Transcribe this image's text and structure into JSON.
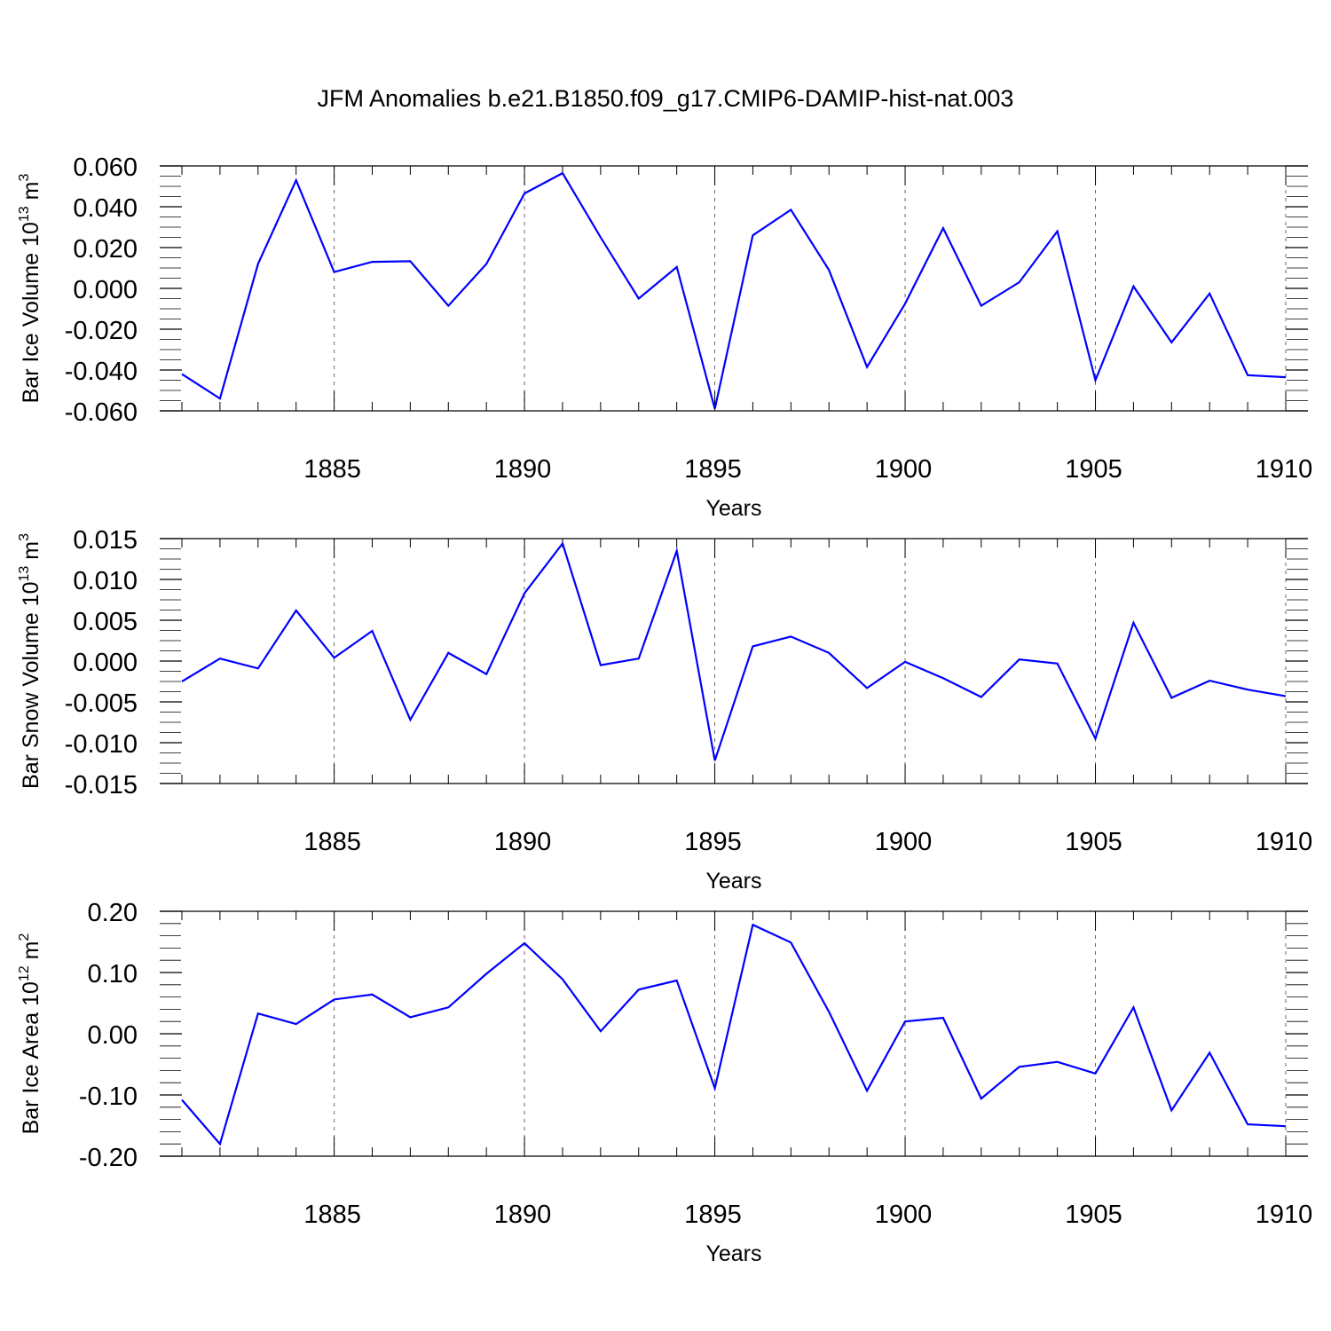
{
  "title": "JFM Anomalies b.e21.B1850.f09_g17.CMIP6-DAMIP-hist-nat.003",
  "colors": {
    "line": "#0000ff",
    "axis": "#000000",
    "grid": "#666666"
  },
  "chart_data": [
    {
      "type": "line",
      "ylabel": {
        "main": "Bar Ice Volume 10",
        "exp": "13",
        "unit": "m",
        "unit_exp": "3"
      },
      "xlabel": "Years",
      "xlim": [
        1881,
        1910
      ],
      "ylim": [
        -0.06,
        0.06
      ],
      "yticks": [
        -0.06,
        -0.04,
        -0.02,
        0.0,
        0.02,
        0.04,
        0.06
      ],
      "ytick_labels": [
        "-0.060",
        "-0.040",
        "-0.020",
        "0.000",
        "0.020",
        "0.040",
        "0.060"
      ],
      "xticks": [
        1885,
        1890,
        1895,
        1900,
        1905,
        1910
      ],
      "xtick_labels": [
        "1885",
        "1890",
        "1895",
        "1900",
        "1905",
        "1910"
      ],
      "grid": "dashed vertical at major x ticks",
      "x": [
        1881,
        1882,
        1883,
        1884,
        1885,
        1886,
        1887,
        1888,
        1889,
        1890,
        1891,
        1892,
        1893,
        1894,
        1895,
        1896,
        1897,
        1898,
        1899,
        1900,
        1901,
        1902,
        1903,
        1904,
        1905,
        1906,
        1907,
        1908,
        1909,
        1910
      ],
      "series": [
        {
          "values": [
            -0.042,
            -0.054,
            0.012,
            0.053,
            0.008,
            0.013,
            0.0133,
            -0.0085,
            0.012,
            0.0465,
            0.0565,
            0.025,
            -0.005,
            0.0105,
            -0.059,
            0.026,
            0.0385,
            0.009,
            -0.0385,
            -0.0075,
            0.0295,
            -0.0085,
            0.003,
            0.028,
            -0.045,
            0.001,
            -0.0265,
            -0.0025,
            -0.0425,
            -0.0435
          ]
        }
      ]
    },
    {
      "type": "line",
      "ylabel": {
        "main": "Bar Snow Volume 10",
        "exp": "13",
        "unit": "m",
        "unit_exp": "3"
      },
      "xlabel": "Years",
      "xlim": [
        1881,
        1910
      ],
      "ylim": [
        -0.015,
        0.015
      ],
      "yticks": [
        -0.015,
        -0.01,
        -0.005,
        0.0,
        0.005,
        0.01,
        0.015
      ],
      "ytick_labels": [
        "-0.015",
        "-0.010",
        "-0.005",
        "0.000",
        "0.005",
        "0.010",
        "0.015"
      ],
      "xticks": [
        1885,
        1890,
        1895,
        1900,
        1905,
        1910
      ],
      "xtick_labels": [
        "1885",
        "1890",
        "1895",
        "1900",
        "1905",
        "1910"
      ],
      "grid": "dashed vertical at major x ticks",
      "x": [
        1881,
        1882,
        1883,
        1884,
        1885,
        1886,
        1887,
        1888,
        1889,
        1890,
        1891,
        1892,
        1893,
        1894,
        1895,
        1896,
        1897,
        1898,
        1899,
        1900,
        1901,
        1902,
        1903,
        1904,
        1905,
        1906,
        1907,
        1908,
        1909,
        1910
      ],
      "series": [
        {
          "values": [
            -0.0025,
            0.0003,
            -0.0009,
            0.0062,
            0.0004,
            0.0037,
            -0.0072,
            0.001,
            -0.0016,
            0.0083,
            0.0144,
            -0.0005,
            0.0003,
            0.0135,
            -0.0122,
            0.0018,
            0.003,
            0.001,
            -0.0033,
            -0.0001,
            -0.0021,
            -0.0044,
            0.0002,
            -0.0003,
            -0.0095,
            0.0047,
            -0.0045,
            -0.0024,
            -0.0035,
            -0.0043
          ]
        }
      ]
    },
    {
      "type": "line",
      "ylabel": {
        "main": "Bar Ice Area 10",
        "exp": "12",
        "unit": "m",
        "unit_exp": "2"
      },
      "xlabel": "Years",
      "xlim": [
        1881,
        1910
      ],
      "ylim": [
        -0.2,
        0.2
      ],
      "yticks": [
        -0.2,
        -0.1,
        0.0,
        0.1,
        0.2
      ],
      "ytick_labels": [
        "-0.20",
        "-0.10",
        "0.00",
        "0.10",
        "0.20"
      ],
      "xticks": [
        1885,
        1890,
        1895,
        1900,
        1905,
        1910
      ],
      "xtick_labels": [
        "1885",
        "1890",
        "1895",
        "1900",
        "1905",
        "1910"
      ],
      "grid": "dashed vertical at major x ticks",
      "x": [
        1881,
        1882,
        1883,
        1884,
        1885,
        1886,
        1887,
        1888,
        1889,
        1890,
        1891,
        1892,
        1893,
        1894,
        1895,
        1896,
        1897,
        1898,
        1899,
        1900,
        1901,
        1902,
        1903,
        1904,
        1905,
        1906,
        1907,
        1908,
        1909,
        1910
      ],
      "series": [
        {
          "values": [
            -0.108,
            -0.18,
            0.033,
            0.016,
            0.056,
            0.064,
            0.027,
            0.043,
            0.098,
            0.148,
            0.089,
            0.004,
            0.072,
            0.087,
            -0.089,
            0.178,
            0.149,
            0.036,
            -0.093,
            0.02,
            0.026,
            -0.106,
            -0.054,
            -0.046,
            -0.065,
            0.043,
            -0.125,
            -0.031,
            -0.148,
            -0.151
          ]
        }
      ]
    }
  ]
}
